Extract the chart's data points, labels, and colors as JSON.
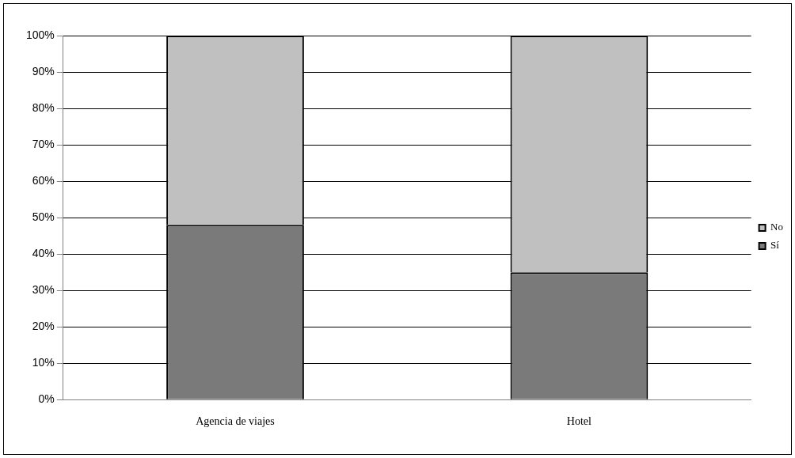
{
  "chart_data": {
    "type": "bar",
    "stacked": true,
    "categories": [
      "Agencia de viajes",
      "Hotel"
    ],
    "series": [
      {
        "name": "Sí",
        "color": "#7a7a7a",
        "values": [
          48,
          35
        ]
      },
      {
        "name": "No",
        "color": "#c0c0c0",
        "values": [
          52,
          65
        ]
      }
    ],
    "ylim": [
      0,
      100
    ],
    "yticks": [
      {
        "value": 0,
        "label": "0%"
      },
      {
        "value": 10,
        "label": "10%"
      },
      {
        "value": 20,
        "label": "20%"
      },
      {
        "value": 30,
        "label": "30%"
      },
      {
        "value": 40,
        "label": "40%"
      },
      {
        "value": 50,
        "label": "50%"
      },
      {
        "value": 60,
        "label": "60%"
      },
      {
        "value": 70,
        "label": "70%"
      },
      {
        "value": 80,
        "label": "80%"
      },
      {
        "value": 90,
        "label": "90%"
      },
      {
        "value": 100,
        "label": "100%"
      }
    ],
    "grid": "y",
    "legend": "right"
  }
}
